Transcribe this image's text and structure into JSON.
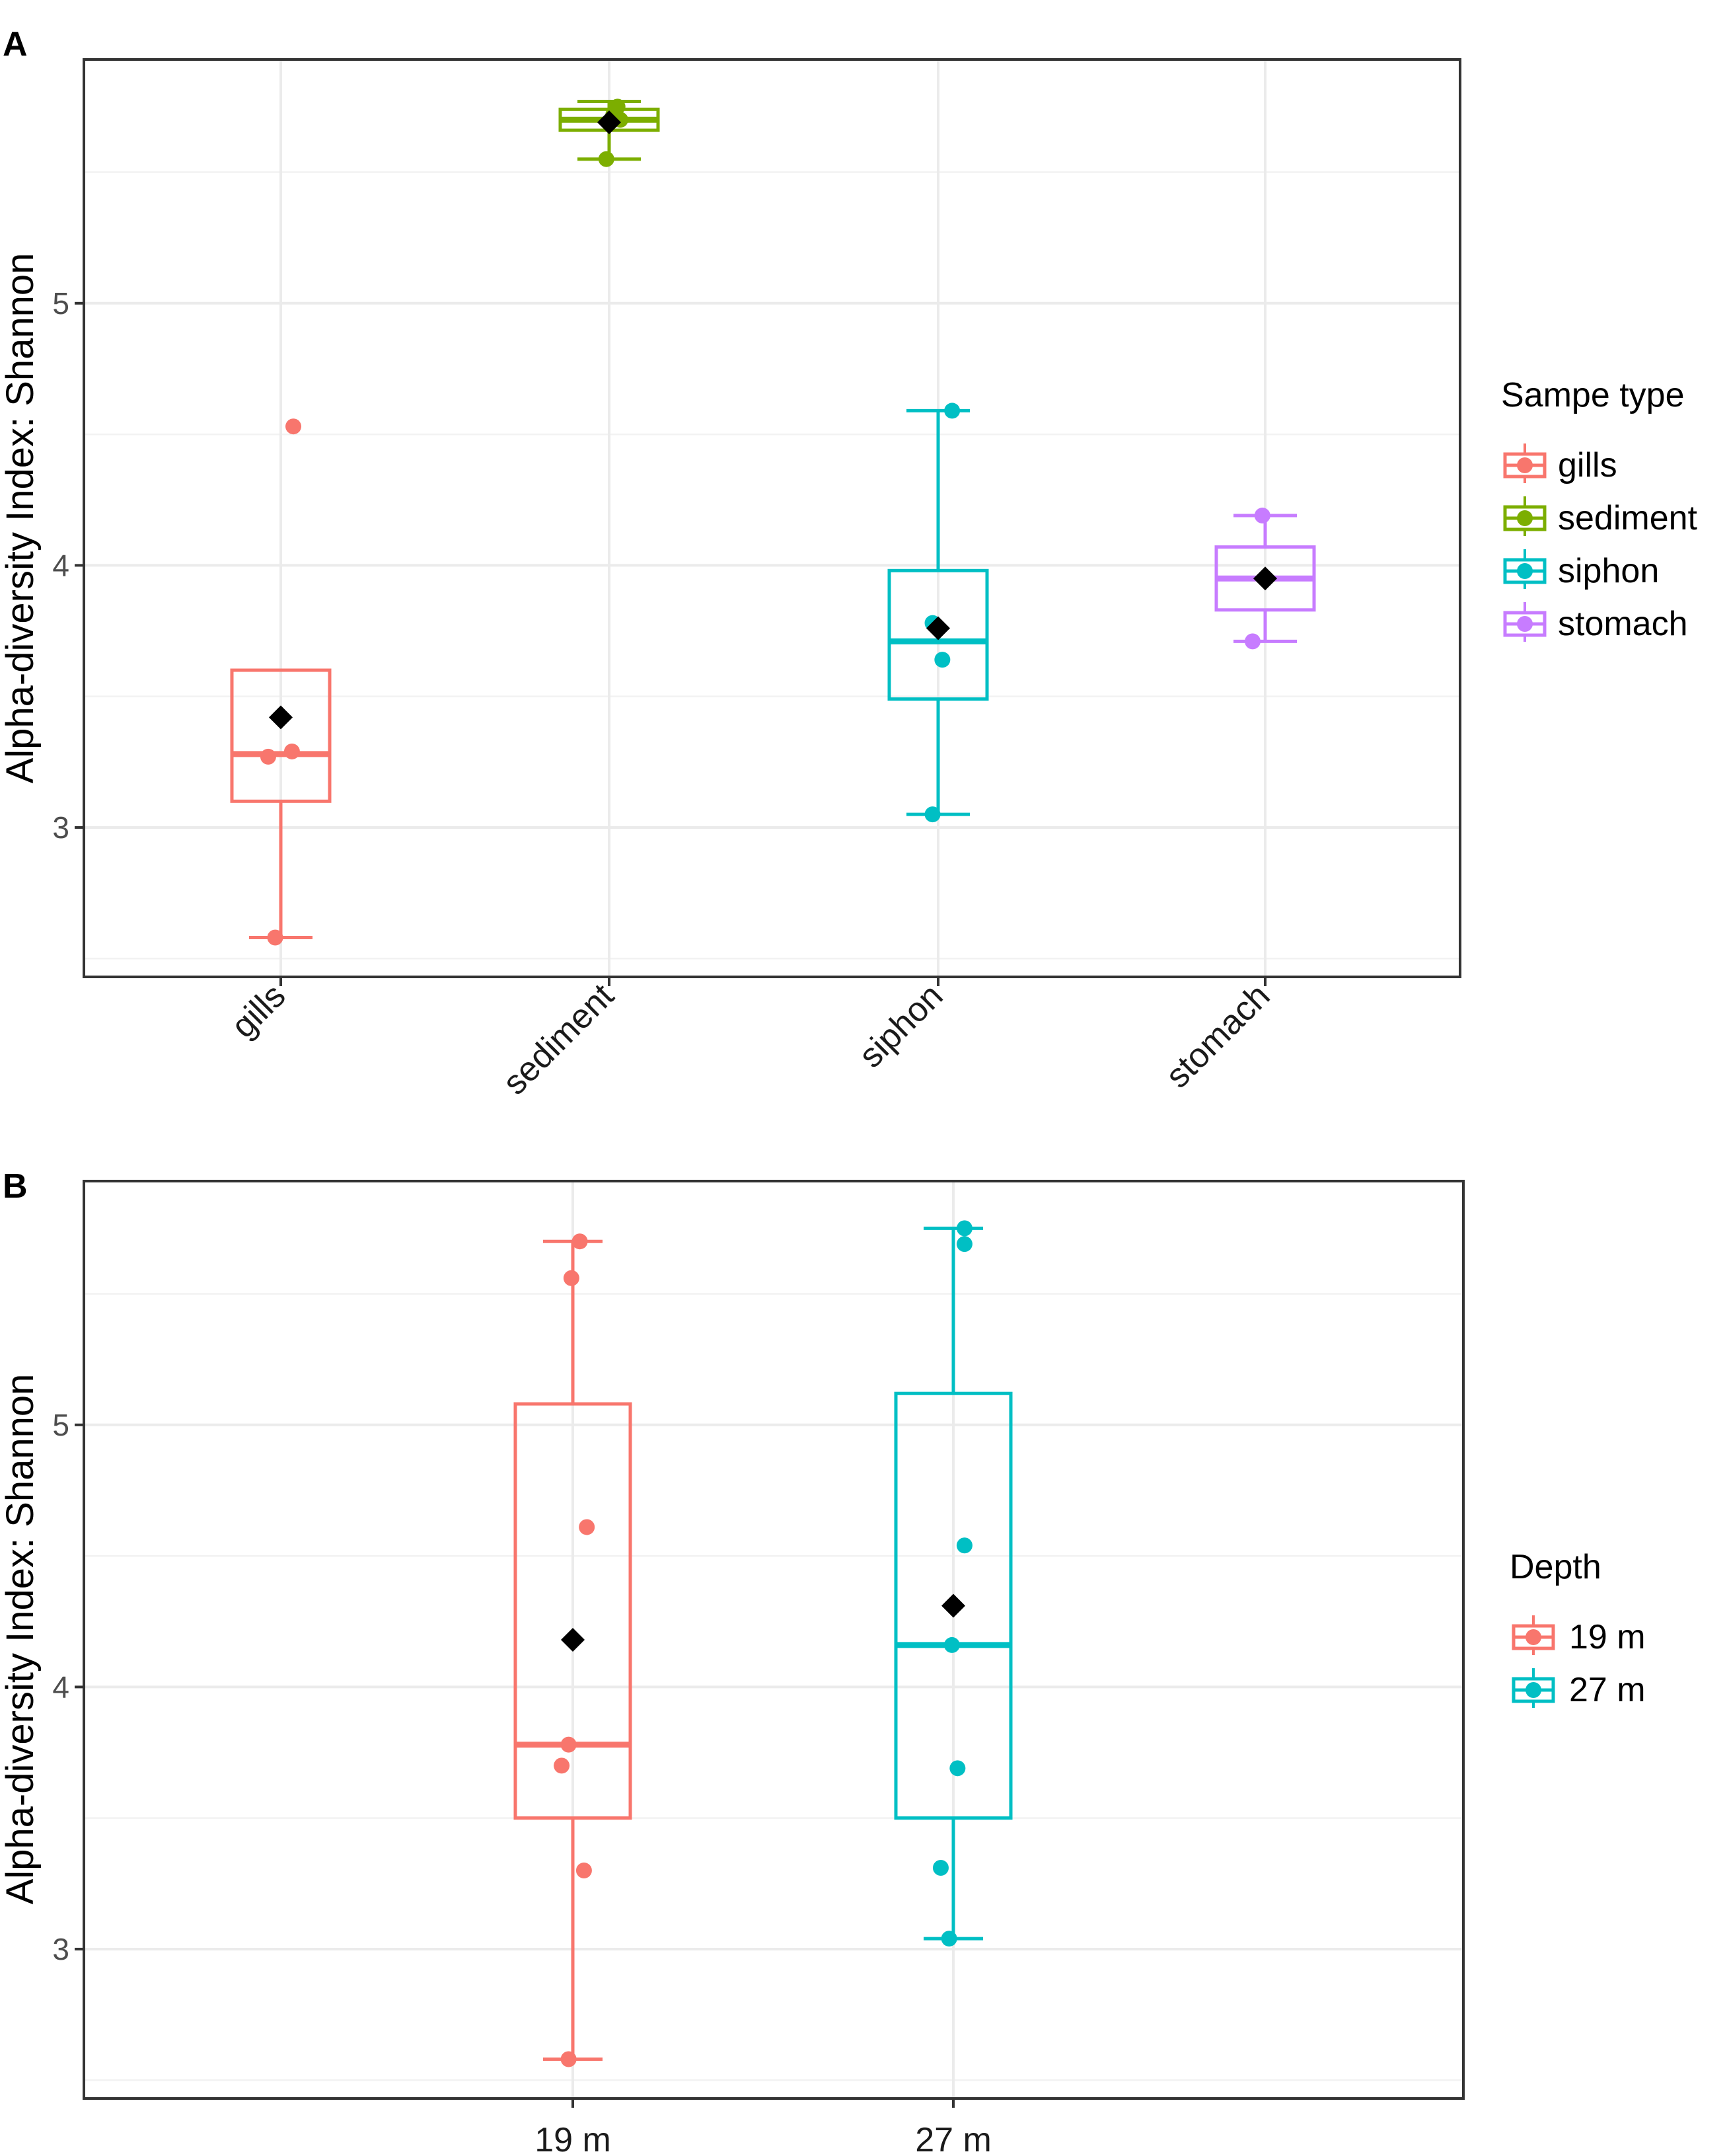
{
  "chart_data": [
    {
      "type": "box",
      "panel_label": "A",
      "ylabel": "Alpha-diversity Index: Shannon",
      "xlabel": "",
      "ylim": [
        2.43,
        5.93
      ],
      "yticks": [
        3,
        4,
        5
      ],
      "categories": [
        "gills",
        "sediment",
        "siphon",
        "stomach"
      ],
      "legend": {
        "title": "Sampe type",
        "position": "right",
        "entries": [
          "gills",
          "sediment",
          "siphon",
          "stomach"
        ]
      },
      "series": [
        {
          "name": "gills",
          "color": "#F8766D",
          "whisker_low": 2.58,
          "q1": 3.1,
          "median": 3.28,
          "q3": 3.6,
          "whisker_high": 3.6,
          "mean": 3.42,
          "points": [
            {
              "x": -0.09,
              "y": 3.27
            },
            {
              "x": -0.04,
              "y": 2.58
            },
            {
              "x": 0.08,
              "y": 3.29
            },
            {
              "x": 0.09,
              "y": 4.53
            }
          ]
        },
        {
          "name": "sediment",
          "color": "#7CAE00",
          "whisker_low": 5.55,
          "q1": 5.66,
          "median": 5.7,
          "q3": 5.74,
          "whisker_high": 5.77,
          "mean": 5.69,
          "points": [
            {
              "x": -0.02,
              "y": 5.55
            },
            {
              "x": 0.06,
              "y": 5.75
            },
            {
              "x": 0.08,
              "y": 5.7
            },
            {
              "x": 0.03,
              "y": 5.72
            }
          ]
        },
        {
          "name": "siphon",
          "color": "#00BFC4",
          "whisker_low": 3.05,
          "q1": 3.49,
          "median": 3.71,
          "q3": 3.98,
          "whisker_high": 4.59,
          "mean": 3.76,
          "points": [
            {
              "x": -0.04,
              "y": 3.05
            },
            {
              "x": -0.04,
              "y": 3.78
            },
            {
              "x": 0.03,
              "y": 3.64
            },
            {
              "x": 0.1,
              "y": 4.59
            }
          ]
        },
        {
          "name": "stomach",
          "color": "#C77CFF",
          "whisker_low": 3.71,
          "q1": 3.83,
          "median": 3.95,
          "q3": 4.07,
          "whisker_high": 4.19,
          "mean": 3.95,
          "points": [
            {
              "x": -0.09,
              "y": 3.71
            },
            {
              "x": -0.02,
              "y": 4.19
            }
          ]
        }
      ]
    },
    {
      "type": "box",
      "panel_label": "B",
      "ylabel": "Alpha-diversity Index: Shannon",
      "xlabel": "",
      "ylim": [
        2.43,
        5.93
      ],
      "yticks": [
        3,
        4,
        5
      ],
      "categories": [
        "19 m",
        "27 m"
      ],
      "legend": {
        "title": "Depth",
        "position": "right",
        "entries": [
          "19 m",
          "27 m"
        ]
      },
      "series": [
        {
          "name": "19 m",
          "color": "#F8766D",
          "whisker_low": 2.58,
          "q1": 3.5,
          "median": 3.78,
          "q3": 5.08,
          "whisker_high": 5.7,
          "mean": 4.18,
          "points": [
            {
              "x": -0.03,
              "y": 2.58
            },
            {
              "x": 0.08,
              "y": 3.3
            },
            {
              "x": -0.08,
              "y": 3.7
            },
            {
              "x": -0.03,
              "y": 3.78
            },
            {
              "x": 0.1,
              "y": 4.61
            },
            {
              "x": -0.01,
              "y": 5.56
            },
            {
              "x": 0.05,
              "y": 5.7
            }
          ]
        },
        {
          "name": "27 m",
          "color": "#00BFC4",
          "whisker_low": 3.04,
          "q1": 3.5,
          "median": 4.16,
          "q3": 5.12,
          "whisker_high": 5.75,
          "mean": 4.31,
          "points": [
            {
              "x": -0.09,
              "y": 3.31
            },
            {
              "x": -0.03,
              "y": 3.04
            },
            {
              "x": 0.03,
              "y": 3.69
            },
            {
              "x": -0.01,
              "y": 4.16
            },
            {
              "x": 0.08,
              "y": 4.54
            },
            {
              "x": 0.08,
              "y": 5.69
            },
            {
              "x": 0.08,
              "y": 5.75
            }
          ]
        }
      ]
    }
  ]
}
